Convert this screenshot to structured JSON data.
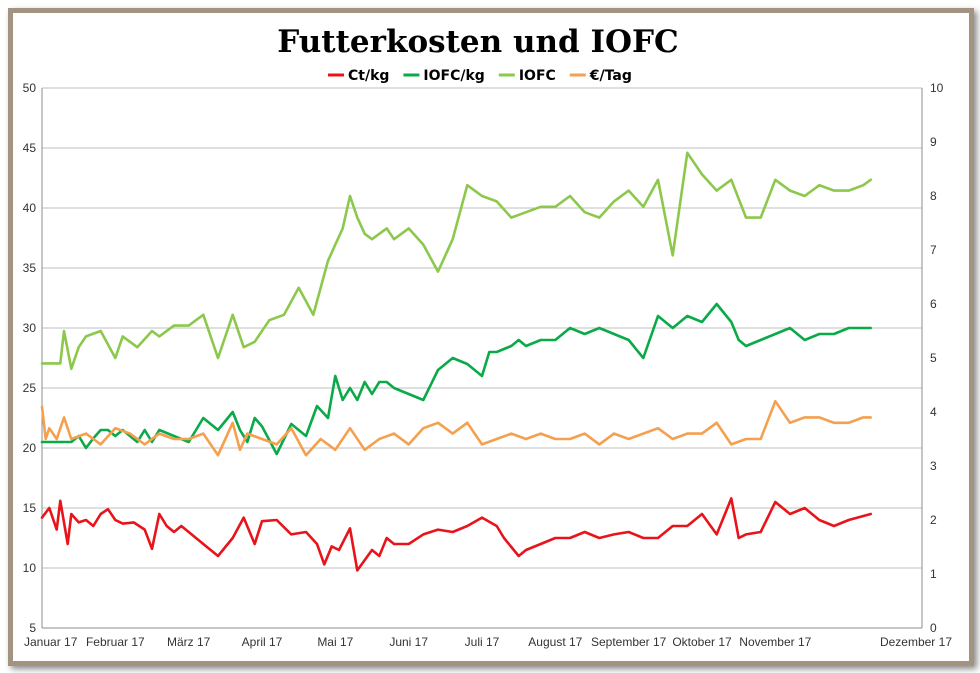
{
  "chart_data": {
    "type": "line",
    "title": "Futterkosten und IOFC",
    "legend_position": "top",
    "grid": true,
    "x_tick_labels": [
      "Januar 17",
      "Februar 17",
      "März 17",
      "April 17",
      "Mai 17",
      "Juni 17",
      "Juli 17",
      "August 17",
      "September 17",
      "Oktober 17",
      "November 17",
      "Dezember 17"
    ],
    "y_left": {
      "min": 5,
      "max": 50,
      "step": 5,
      "ticks": [
        "5",
        "10",
        "15",
        "20",
        "25",
        "30",
        "35",
        "40",
        "45",
        "50"
      ]
    },
    "y_right": {
      "min": 0,
      "max": 10,
      "step": 1,
      "ticks": [
        "0",
        "1",
        "2",
        "3",
        "4",
        "5",
        "6",
        "7",
        "8",
        "9",
        "10"
      ]
    },
    "series": [
      {
        "name": "Ct/kg",
        "color": "#e8141b",
        "axis": "left",
        "x": [
          0,
          0.1,
          0.2,
          0.25,
          0.35,
          0.4,
          0.5,
          0.6,
          0.7,
          0.8,
          0.9,
          1.0,
          1.1,
          1.25,
          1.4,
          1.5,
          1.6,
          1.7,
          1.8,
          1.9,
          2.0,
          2.2,
          2.4,
          2.6,
          2.75,
          2.9,
          3.0,
          3.2,
          3.4,
          3.6,
          3.75,
          3.85,
          3.95,
          4.05,
          4.2,
          4.3,
          4.5,
          4.6,
          4.7,
          4.8,
          5.0,
          5.2,
          5.4,
          5.6,
          5.8,
          6.0,
          6.2,
          6.3,
          6.5,
          6.6,
          6.8,
          7.0,
          7.2,
          7.4,
          7.6,
          7.8,
          8.0,
          8.2,
          8.4,
          8.6,
          8.8,
          9.0,
          9.2,
          9.4,
          9.5,
          9.6,
          9.8,
          10.0,
          10.2,
          10.4,
          10.6,
          10.8,
          11.0,
          11.3
        ],
        "y": [
          14.2,
          15.0,
          13.2,
          15.6,
          12.0,
          14.5,
          13.8,
          14.0,
          13.5,
          14.5,
          14.9,
          14.0,
          13.7,
          13.8,
          13.2,
          11.6,
          14.5,
          13.5,
          13.0,
          13.5,
          13.0,
          12.0,
          11.0,
          12.5,
          14.2,
          12.0,
          13.9,
          14.0,
          12.8,
          13.0,
          12.0,
          10.3,
          11.8,
          11.5,
          13.3,
          9.8,
          11.5,
          11.0,
          12.5,
          12.0,
          12.0,
          12.8,
          13.2,
          13.0,
          13.5,
          14.2,
          13.5,
          12.5,
          11.0,
          11.5,
          12.0,
          12.5,
          12.5,
          13.0,
          12.5,
          12.8,
          13.0,
          12.5,
          12.5,
          13.5,
          13.5,
          14.5,
          12.8,
          15.8,
          12.5,
          12.8,
          13.0,
          15.5,
          14.5,
          15.0,
          14.0,
          13.5,
          14.0,
          14.5
        ]
      },
      {
        "name": "IOFC/kg",
        "color": "#0aaa48",
        "axis": "left",
        "x": [
          0,
          0.25,
          0.4,
          0.5,
          0.6,
          0.7,
          0.8,
          0.9,
          1.0,
          1.1,
          1.2,
          1.3,
          1.4,
          1.5,
          1.6,
          1.8,
          2.0,
          2.1,
          2.2,
          2.4,
          2.6,
          2.7,
          2.8,
          2.9,
          3.0,
          3.2,
          3.4,
          3.6,
          3.75,
          3.9,
          4.0,
          4.1,
          4.2,
          4.3,
          4.4,
          4.5,
          4.6,
          4.7,
          4.8,
          5.0,
          5.2,
          5.4,
          5.6,
          5.8,
          6.0,
          6.1,
          6.2,
          6.4,
          6.5,
          6.6,
          6.8,
          7.0,
          7.2,
          7.4,
          7.6,
          7.8,
          8.0,
          8.2,
          8.4,
          8.6,
          8.8,
          9.0,
          9.2,
          9.4,
          9.5,
          9.6,
          9.8,
          10.0,
          10.2,
          10.4,
          10.6,
          10.8,
          11.0,
          11.3
        ],
        "y": [
          20.5,
          20.5,
          20.5,
          21.0,
          20.0,
          20.8,
          21.5,
          21.5,
          21.0,
          21.5,
          21.0,
          20.5,
          21.5,
          20.5,
          21.5,
          21.0,
          20.5,
          21.5,
          22.5,
          21.5,
          23.0,
          21.5,
          20.5,
          22.5,
          21.8,
          19.5,
          22.0,
          21.0,
          23.5,
          22.5,
          26.0,
          24.0,
          25.0,
          24.0,
          25.5,
          24.5,
          25.5,
          25.5,
          25.0,
          24.5,
          24.0,
          26.5,
          27.5,
          27.0,
          26.0,
          28.0,
          28.0,
          28.5,
          29.0,
          28.5,
          29.0,
          29.0,
          30.0,
          29.5,
          30.0,
          29.5,
          29.0,
          27.5,
          31.0,
          30.0,
          31.0,
          30.5,
          32.0,
          30.5,
          29.0,
          28.5,
          29.0,
          29.5,
          30.0,
          29.0,
          29.5,
          29.5,
          30.0,
          30.0
        ]
      },
      {
        "name": "IOFC",
        "color": "#8cc84b",
        "axis": "right",
        "x": [
          0,
          0.25,
          0.3,
          0.4,
          0.5,
          0.6,
          0.8,
          1.0,
          1.1,
          1.3,
          1.5,
          1.6,
          1.8,
          2.0,
          2.2,
          2.4,
          2.6,
          2.75,
          2.9,
          3.1,
          3.3,
          3.5,
          3.7,
          3.9,
          4.0,
          4.1,
          4.2,
          4.3,
          4.4,
          4.5,
          4.7,
          4.8,
          5.0,
          5.2,
          5.4,
          5.6,
          5.8,
          6.0,
          6.2,
          6.4,
          6.6,
          6.8,
          7.0,
          7.2,
          7.4,
          7.6,
          7.8,
          8.0,
          8.2,
          8.4,
          8.6,
          8.8,
          9.0,
          9.2,
          9.4,
          9.6,
          9.8,
          10.0,
          10.2,
          10.4,
          10.6,
          10.8,
          11.0,
          11.2,
          11.3
        ],
        "y": [
          4.9,
          4.9,
          5.5,
          4.8,
          5.2,
          5.4,
          5.5,
          5.0,
          5.4,
          5.2,
          5.5,
          5.4,
          5.6,
          5.6,
          5.8,
          5.0,
          5.8,
          5.2,
          5.3,
          5.7,
          5.8,
          6.3,
          5.8,
          6.8,
          7.1,
          7.4,
          8.0,
          7.6,
          7.3,
          7.2,
          7.4,
          7.2,
          7.4,
          7.1,
          6.6,
          7.2,
          8.2,
          8.0,
          7.9,
          7.6,
          7.7,
          7.8,
          7.8,
          8.0,
          7.7,
          7.6,
          7.9,
          8.1,
          7.8,
          8.3,
          6.9,
          8.8,
          8.4,
          8.1,
          8.3,
          7.6,
          7.6,
          8.3,
          8.1,
          8.0,
          8.2,
          8.1,
          8.1,
          8.2,
          8.3
        ]
      },
      {
        "name": "€/Tag",
        "color": "#f4a04f",
        "axis": "right",
        "x": [
          0,
          0.05,
          0.1,
          0.2,
          0.3,
          0.4,
          0.6,
          0.8,
          1.0,
          1.2,
          1.4,
          1.6,
          1.8,
          2.0,
          2.2,
          2.4,
          2.6,
          2.7,
          2.8,
          3.0,
          3.2,
          3.4,
          3.6,
          3.8,
          4.0,
          4.2,
          4.4,
          4.6,
          4.8,
          5.0,
          5.2,
          5.4,
          5.6,
          5.8,
          6.0,
          6.2,
          6.4,
          6.6,
          6.8,
          7.0,
          7.2,
          7.4,
          7.6,
          7.8,
          8.0,
          8.2,
          8.4,
          8.6,
          8.8,
          9.0,
          9.2,
          9.4,
          9.6,
          9.8,
          10.0,
          10.2,
          10.4,
          10.6,
          10.8,
          11.0,
          11.2,
          11.3
        ],
        "y": [
          4.1,
          3.5,
          3.7,
          3.5,
          3.9,
          3.5,
          3.6,
          3.4,
          3.7,
          3.6,
          3.4,
          3.6,
          3.5,
          3.5,
          3.6,
          3.2,
          3.8,
          3.3,
          3.6,
          3.5,
          3.4,
          3.7,
          3.2,
          3.5,
          3.3,
          3.7,
          3.3,
          3.5,
          3.6,
          3.4,
          3.7,
          3.8,
          3.6,
          3.8,
          3.4,
          3.5,
          3.6,
          3.5,
          3.6,
          3.5,
          3.5,
          3.6,
          3.4,
          3.6,
          3.5,
          3.6,
          3.7,
          3.5,
          3.6,
          3.6,
          3.8,
          3.4,
          3.5,
          3.5,
          4.2,
          3.8,
          3.9,
          3.9,
          3.8,
          3.8,
          3.9,
          3.9
        ]
      }
    ]
  }
}
